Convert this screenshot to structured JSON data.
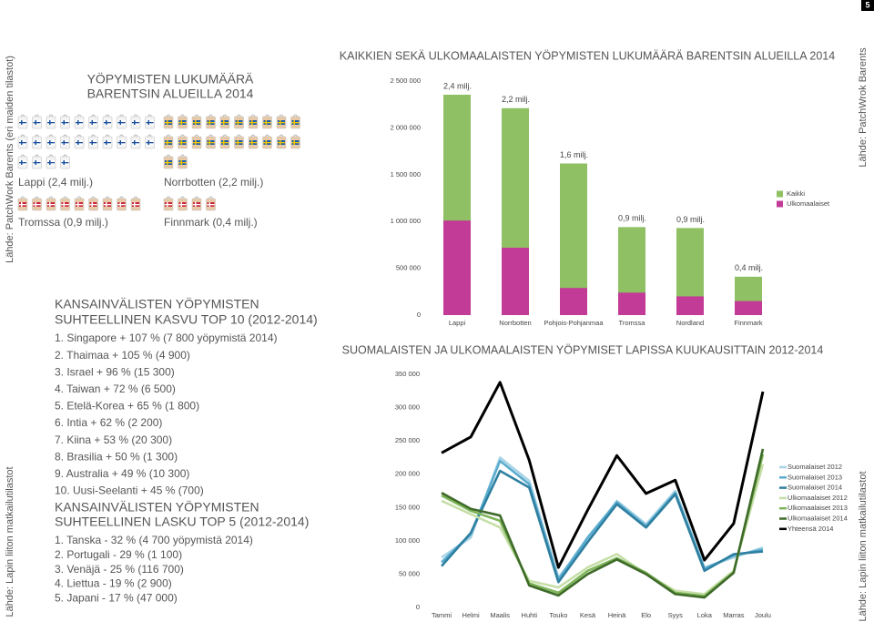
{
  "page_number": "5",
  "side_labels": {
    "left_top": "Lähde: PatchWork Barents (eri maiden tilastot)",
    "left_bottom": "Lähde: Lapin liiton matkailutilastot",
    "right_top": "Lähde: PatchWrok Barents",
    "right_bottom": "Lähde: Lapin liiton matkailutilastot"
  },
  "pictogram": {
    "title": [
      "YÖPYMISTEN LUKUMÄÄRÄ",
      "BARENTSIN ALUEILLA 2014"
    ],
    "regions": [
      {
        "label": "Lappi (2,4 milj.)"
      },
      {
        "label": "Norrbotten (2,2 milj.)"
      },
      {
        "label": "Tromssa (0,9 milj.)"
      },
      {
        "label": "Finnmark (0,4 milj.)"
      }
    ]
  },
  "growth": {
    "title": [
      "KANSAINVÄLISTEN YÖPYMISTEN",
      "SUHTEELLINEN KASVU TOP 10 (2012-2014)"
    ],
    "items": [
      "1. Singapore + 107 % (7 800 yöpymistä 2014)",
      "2. Thaimaa + 105 % (4 900)",
      "3. Israel + 96 % (15 300)",
      "4. Taiwan + 72 % (6 500)",
      "5. Etelä-Korea + 65 % (1 800)",
      "6. Intia + 62 % (2 200)",
      "7. Kiina + 53 % (20 300)",
      "8. Brasilia + 50 % (1 300)",
      "9. Australia + 49 % (10 300)",
      "10. Uusi-Seelanti + 45 % (700)"
    ]
  },
  "decline": {
    "title": [
      "KANSAINVÄLISTEN YÖPYMISTEN",
      "SUHTEELLINEN LASKU TOP 5 (2012-2014)"
    ],
    "items": [
      "1. Tanska - 32 % (4 700 yöpymistä 2014)",
      "2. Portugali - 29 % (1 100)",
      "3. Venäjä - 25 % (116 700)",
      "4. Liettua - 19 % (2 900)",
      "5. Japani - 17 % (47 000)"
    ]
  },
  "chart_data": [
    {
      "type": "bar",
      "title": "KAIKKIEN SEKÄ ULKOMAALAISTEN YÖPYMISTEN LUKUMÄÄRÄ BARENTSIN ALUEILLA 2014",
      "bar_mode": "overlay",
      "categories": [
        "Lappi",
        "Norrbotten",
        "Pohjois-Pohjanmaa",
        "Tromssa",
        "Nordland",
        "Finnmark"
      ],
      "series": [
        {
          "name": "Kaikki",
          "color": "#8fc064",
          "values": [
            2354000,
            2210000,
            1620000,
            940000,
            930000,
            410000
          ],
          "value_labels": [
            "2,4 milj.",
            "2,2 milj.",
            "1,6 milj.",
            "0,9 milj.",
            "0,9 milj.",
            "0,4 milj."
          ]
        },
        {
          "name": "Ulkomaalaiset",
          "color": "#c23b96",
          "values": [
            1010000,
            720000,
            290000,
            240000,
            200000,
            150000
          ]
        }
      ],
      "ylim": [
        0,
        2500000
      ],
      "yticks": [
        0,
        {
          "value": 500000,
          "label": "500 000"
        },
        {
          "value": 1000000,
          "label": "1 000 000"
        },
        {
          "value": 1500000,
          "label": "1 500 000"
        },
        {
          "value": 2000000,
          "label": "2 000 000"
        },
        {
          "value": 2500000,
          "label": "2 500 000"
        }
      ]
    },
    {
      "type": "line",
      "title": "SUOMALAISTEN JA ULKOMAALAISTEN YÖPYMISET LAPISSA KUUKAUSITTAIN 2012-2014",
      "categories": [
        "Tammi",
        "Helmi",
        "Maalis",
        "Huhti",
        "Touko",
        "Kesä",
        "Heinä",
        "Elo",
        "Syys",
        "Loka",
        "Marras",
        "Joulu"
      ],
      "series": [
        {
          "name": "Suomalaiset 2012",
          "color": "#a8d4e6",
          "values": [
            75000,
            105000,
            225000,
            190000,
            45000,
            100000,
            160000,
            125000,
            175000,
            60000,
            75000,
            90000
          ]
        },
        {
          "name": "Suomalaiset 2013",
          "color": "#5aaccf",
          "values": [
            68000,
            110000,
            220000,
            185000,
            42000,
            105000,
            158000,
            122000,
            172000,
            58000,
            78000,
            87000
          ]
        },
        {
          "name": "Suomalaiset 2014",
          "color": "#2e7fa0",
          "values": [
            62000,
            112000,
            205000,
            180000,
            38000,
            98000,
            155000,
            120000,
            170000,
            55000,
            80000,
            84000
          ]
        },
        {
          "name": "Ulkomaalaiset 2012",
          "color": "#c6dfa8",
          "values": [
            160000,
            140000,
            120000,
            40000,
            30000,
            60000,
            80000,
            50000,
            25000,
            20000,
            55000,
            215000
          ]
        },
        {
          "name": "Ulkomaalaiset 2013",
          "color": "#7fb55a",
          "values": [
            168000,
            145000,
            130000,
            36000,
            22000,
            55000,
            74000,
            52000,
            22000,
            17000,
            53000,
            230000
          ]
        },
        {
          "name": "Ulkomaalaiset 2014",
          "color": "#3f6b2a",
          "values": [
            172000,
            148000,
            138000,
            33000,
            18000,
            50000,
            72000,
            50000,
            20000,
            15000,
            52000,
            238000
          ]
        },
        {
          "name": "Yhteensä 2014",
          "color": "#000000",
          "values": [
            232000,
            256000,
            338000,
            221000,
            60000,
            146000,
            228000,
            171000,
            191000,
            71000,
            126000,
            324000
          ]
        }
      ],
      "ylim": [
        0,
        350000
      ],
      "yticks": [
        0,
        {
          "value": 50000,
          "label": "50 000"
        },
        {
          "value": 100000,
          "label": "100 000"
        },
        {
          "value": 150000,
          "label": "150 000"
        },
        {
          "value": 200000,
          "label": "200 000"
        },
        {
          "value": 250000,
          "label": "250 000"
        },
        {
          "value": 300000,
          "label": "300 000"
        },
        {
          "value": 350000,
          "label": "350 000"
        }
      ]
    }
  ]
}
